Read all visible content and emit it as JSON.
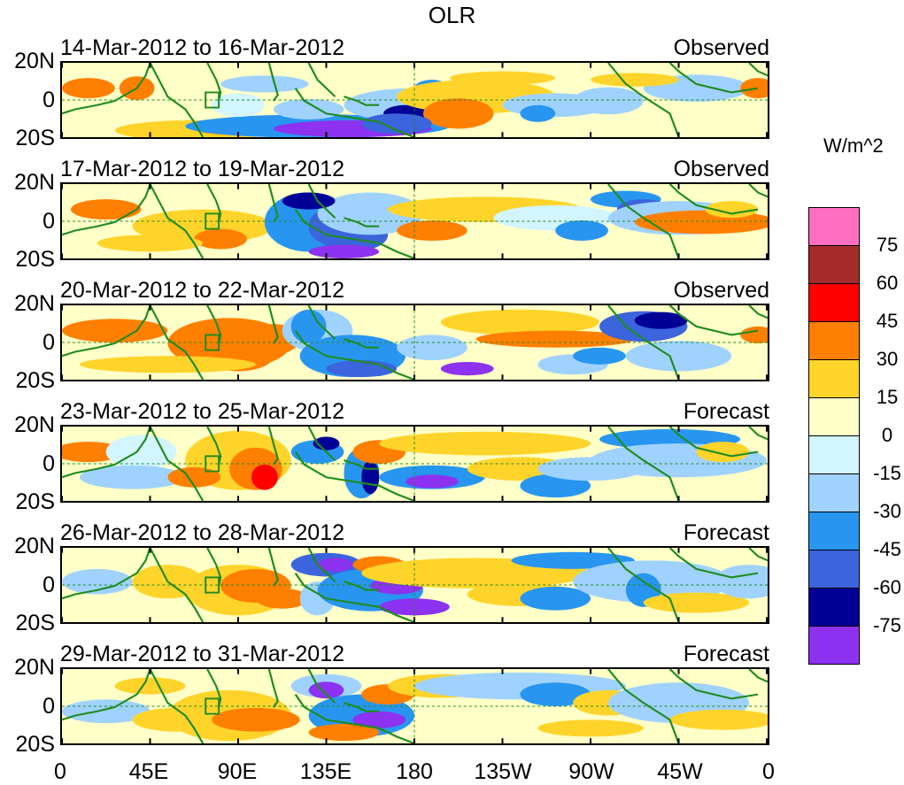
{
  "title": "OLR",
  "units": "W/m^2",
  "panels": [
    {
      "dates": "14-Mar-2012 to 16-Mar-2012",
      "kind": "Observed"
    },
    {
      "dates": "17-Mar-2012 to 19-Mar-2012",
      "kind": "Observed"
    },
    {
      "dates": "20-Mar-2012 to 22-Mar-2012",
      "kind": "Observed"
    },
    {
      "dates": "23-Mar-2012 to 25-Mar-2012",
      "kind": "Forecast"
    },
    {
      "dates": "26-Mar-2012 to 28-Mar-2012",
      "kind": "Forecast"
    },
    {
      "dates": "29-Mar-2012 to 31-Mar-2012",
      "kind": "Forecast"
    }
  ],
  "lat_labels": [
    "20N",
    "0",
    "20S"
  ],
  "lon_labels": [
    "0",
    "45E",
    "90E",
    "135E",
    "180",
    "135W",
    "90W",
    "45W",
    "0"
  ],
  "colorbar": {
    "labels": [
      "75",
      "60",
      "45",
      "30",
      "15",
      "0",
      "-15",
      "-30",
      "-45",
      "-60",
      "-75"
    ],
    "colors": [
      "#ff6ec0",
      "#a52a2a",
      "#ff0000",
      "#ff7f00",
      "#ffd42a",
      "#ffffc8",
      "#d2f5ff",
      "#a0d2ff",
      "#2896f0",
      "#3c64dc",
      "#000096",
      "#8c32f0"
    ]
  }
}
